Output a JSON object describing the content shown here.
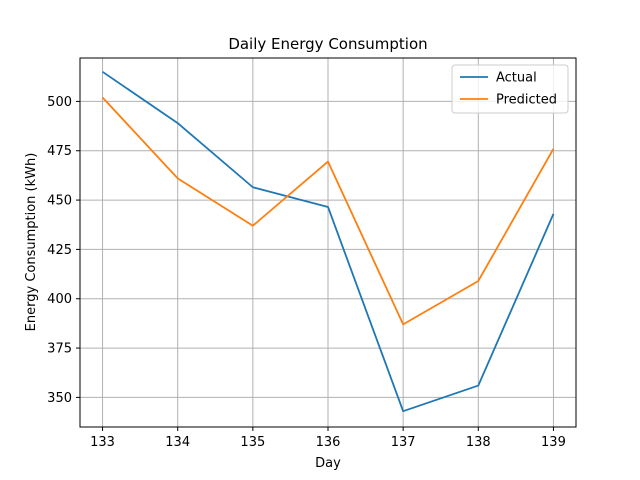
{
  "chart_data": {
    "type": "line",
    "title": "Daily Energy Consumption",
    "xlabel": "Day",
    "ylabel": "Energy Consumption (kWh)",
    "x": [
      133,
      134,
      135,
      136,
      137,
      138,
      139
    ],
    "xlim": [
      132.7,
      139.3
    ],
    "ylim": [
      335,
      522
    ],
    "xticks": [
      133,
      134,
      135,
      136,
      137,
      138,
      139
    ],
    "yticks": [
      350,
      375,
      400,
      425,
      450,
      475,
      500
    ],
    "grid": true,
    "legend_position": "upper right",
    "series": [
      {
        "name": "Actual",
        "color": "#1f77b4",
        "values": [
          515,
          489,
          456.5,
          446.5,
          343,
          356,
          443
        ]
      },
      {
        "name": "Predicted",
        "color": "#ff7f0e",
        "values": [
          502,
          461,
          437,
          469.5,
          387,
          409,
          476
        ]
      }
    ]
  }
}
